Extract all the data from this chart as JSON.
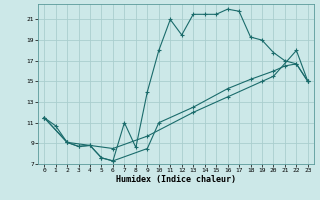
{
  "xlabel": "Humidex (Indice chaleur)",
  "ylabel": "",
  "background_color": "#cce8e8",
  "grid_color": "#aacece",
  "line_color": "#1a6b6b",
  "xlim": [
    -0.5,
    23.5
  ],
  "ylim": [
    7,
    22.5
  ],
  "xticks": [
    0,
    1,
    2,
    3,
    4,
    5,
    6,
    7,
    8,
    9,
    10,
    11,
    12,
    13,
    14,
    15,
    16,
    17,
    18,
    19,
    20,
    21,
    22,
    23
  ],
  "yticks": [
    7,
    9,
    11,
    13,
    15,
    17,
    19,
    21
  ],
  "series1": [
    [
      0,
      11.5
    ],
    [
      1,
      10.7
    ],
    [
      2,
      9.1
    ],
    [
      3,
      8.7
    ],
    [
      4,
      8.8
    ],
    [
      5,
      7.6
    ],
    [
      6,
      7.3
    ],
    [
      7,
      11.0
    ],
    [
      8,
      8.6
    ],
    [
      9,
      14.0
    ],
    [
      10,
      18.0
    ],
    [
      11,
      21.0
    ],
    [
      12,
      19.5
    ],
    [
      13,
      21.5
    ],
    [
      14,
      21.5
    ],
    [
      15,
      21.5
    ],
    [
      16,
      22.0
    ],
    [
      17,
      21.8
    ],
    [
      18,
      19.3
    ],
    [
      19,
      19.0
    ],
    [
      20,
      17.8
    ],
    [
      21,
      17.0
    ],
    [
      22,
      16.7
    ],
    [
      23,
      15.0
    ]
  ],
  "series2": [
    [
      0,
      11.5
    ],
    [
      2,
      9.1
    ],
    [
      3,
      8.7
    ],
    [
      4,
      8.8
    ],
    [
      5,
      7.6
    ],
    [
      6,
      7.3
    ],
    [
      9,
      8.5
    ],
    [
      10,
      11.0
    ],
    [
      13,
      12.5
    ],
    [
      16,
      14.3
    ],
    [
      18,
      15.2
    ],
    [
      20,
      16.0
    ],
    [
      21,
      16.5
    ],
    [
      22,
      16.7
    ],
    [
      23,
      15.0
    ]
  ],
  "series3": [
    [
      0,
      11.5
    ],
    [
      2,
      9.1
    ],
    [
      6,
      8.5
    ],
    [
      9,
      9.7
    ],
    [
      13,
      12.0
    ],
    [
      16,
      13.5
    ],
    [
      19,
      15.0
    ],
    [
      20,
      15.5
    ],
    [
      22,
      18.0
    ],
    [
      23,
      15.0
    ]
  ]
}
